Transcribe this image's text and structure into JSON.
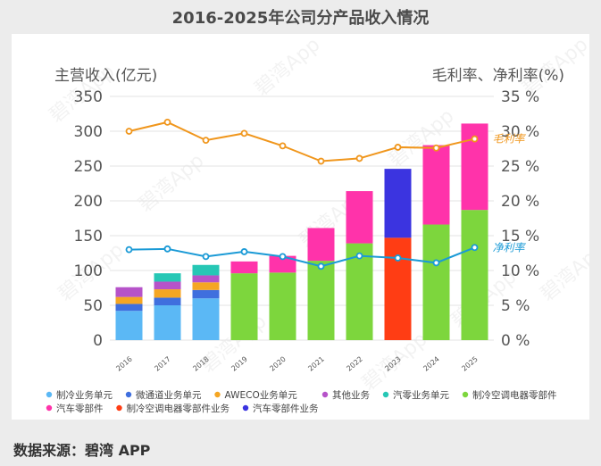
{
  "title": "2016-2025年公司分产品收入情况",
  "source": "数据来源：碧湾 APP",
  "watermark": "碧湾App",
  "chart_data": {
    "type": "bar",
    "stacked": true,
    "ylabel_left": "主营收入(亿元)",
    "ylabel_right": "毛利率、净利率(%)",
    "ylim_left": [
      0,
      350
    ],
    "ylim_right": [
      0,
      35
    ],
    "yticks_left": [
      "0",
      "50",
      "100",
      "150",
      "200",
      "250",
      "300",
      "350"
    ],
    "yticks_right": [
      "0 %",
      "5 %",
      "10 %",
      "15 %",
      "20 %",
      "25 %",
      "30 %",
      "35 %"
    ],
    "categories": [
      "2016",
      "2017",
      "2018",
      "2019",
      "2020",
      "2021",
      "2022",
      "2023",
      "2024",
      "2025"
    ],
    "series": [
      {
        "name": "制冷业务单元",
        "color": "#5bb8f5",
        "values": [
          42,
          50,
          60,
          0,
          0,
          0,
          0,
          0,
          0,
          0
        ]
      },
      {
        "name": "微通道业务单元",
        "color": "#3f6fde",
        "values": [
          10,
          11,
          12,
          0,
          0,
          0,
          0,
          0,
          0,
          0
        ]
      },
      {
        "name": "AWECO业务单元",
        "color": "#f5a623",
        "values": [
          10,
          12,
          11,
          0,
          0,
          0,
          0,
          0,
          0,
          0
        ]
      },
      {
        "name": "其他业务",
        "color": "#b653c9",
        "values": [
          14,
          11,
          10,
          0,
          0,
          0,
          0,
          0,
          0,
          0
        ]
      },
      {
        "name": "汽零业务单元",
        "color": "#26c7b5",
        "values": [
          0,
          12,
          15,
          0,
          0,
          0,
          0,
          0,
          0,
          0
        ]
      },
      {
        "name": "制冷空调电器零部件",
        "color": "#7dd63d",
        "values": [
          0,
          0,
          0,
          96,
          97,
          114,
          139,
          0,
          166,
          187
        ]
      },
      {
        "name": "汽车零部件",
        "color": "#ff33aa",
        "values": [
          0,
          0,
          0,
          17,
          24,
          47,
          75,
          0,
          114,
          124
        ]
      },
      {
        "name": "制冷空调电器零部件业务",
        "color": "#ff3d14",
        "values": [
          0,
          0,
          0,
          0,
          0,
          0,
          0,
          147,
          0,
          0
        ]
      },
      {
        "name": "汽车零部件业务",
        "color": "#3b34e0",
        "values": [
          0,
          0,
          0,
          0,
          0,
          0,
          0,
          99,
          0,
          0
        ]
      }
    ],
    "lines": [
      {
        "name": "毛利率",
        "color": "#f0961c",
        "axis": "right",
        "values": [
          30.0,
          31.3,
          28.7,
          29.7,
          27.9,
          25.7,
          26.1,
          27.7,
          27.6,
          28.9
        ]
      },
      {
        "name": "净利率",
        "color": "#1a9ad6",
        "axis": "right",
        "values": [
          13.0,
          13.1,
          12.0,
          12.7,
          12.0,
          10.6,
          12.1,
          11.8,
          11.1,
          13.3
        ]
      }
    ],
    "legend_position": "bottom",
    "grid": true
  }
}
